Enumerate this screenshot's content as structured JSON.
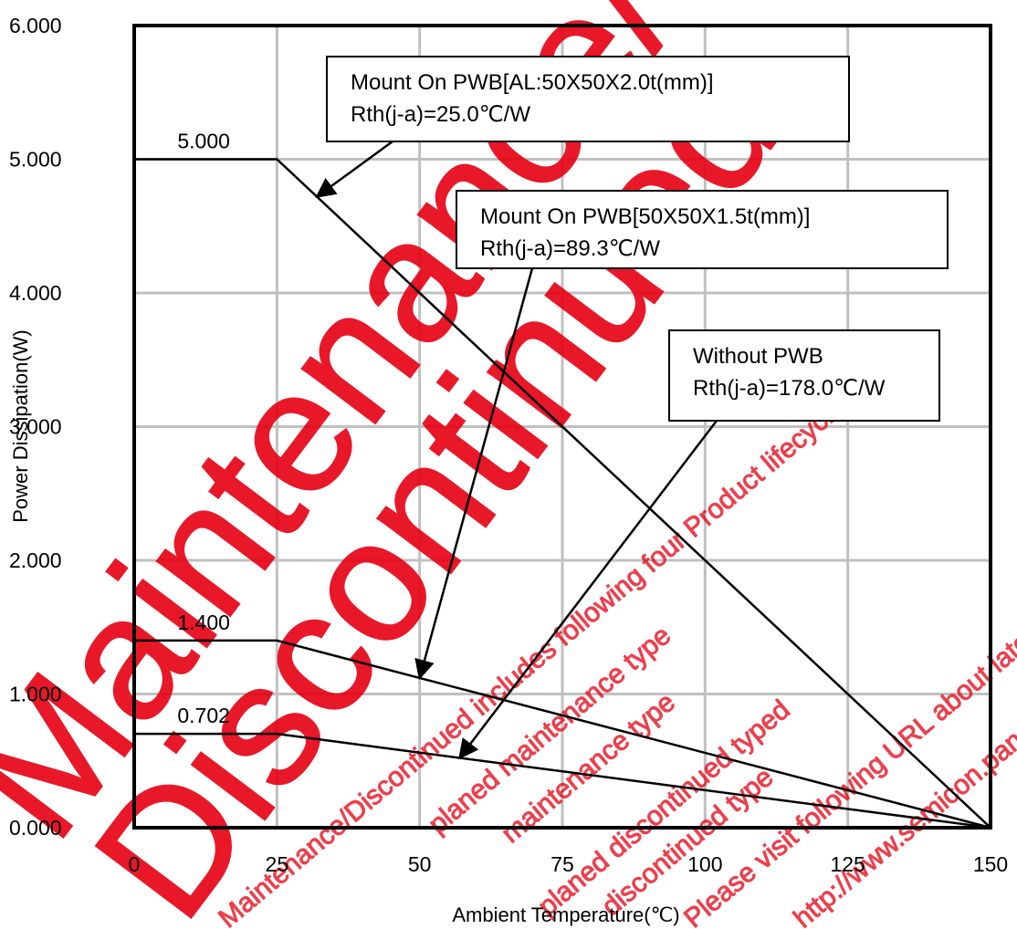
{
  "chart_data": {
    "type": "line",
    "xlabel": "Ambient Temperature(℃)",
    "ylabel": "Power Dissipation(W)",
    "xlim": [
      0,
      150
    ],
    "ylim": [
      0,
      6
    ],
    "xticks": [
      "0",
      "25",
      "50",
      "75",
      "100",
      "125",
      "150"
    ],
    "yticks": [
      "0.000",
      "1.000",
      "2.000",
      "3.000",
      "4.000",
      "5.000",
      "6.000"
    ],
    "grid": true,
    "series": [
      {
        "x": [
          0,
          25,
          150
        ],
        "y": [
          5.0,
          5.0,
          0.0
        ],
        "label": "5.000"
      },
      {
        "x": [
          0,
          25,
          150
        ],
        "y": [
          1.4,
          1.4,
          0.0
        ],
        "label": "1.400"
      },
      {
        "x": [
          0,
          25,
          150
        ],
        "y": [
          0.702,
          0.702,
          0.0
        ],
        "label": "0.702"
      }
    ],
    "annotations": [
      {
        "lines": [
          "Mount On PWB[AL:50X50X2.0t(mm)]",
          "Rth(j-a)=25.0℃/W"
        ]
      },
      {
        "lines": [
          "Mount On PWB[50X50X1.5t(mm)]",
          "Rth(j-a)=89.3℃/W"
        ]
      },
      {
        "lines": [
          "Without PWB",
          "Rth(j-a)=178.0℃/W"
        ]
      }
    ]
  },
  "watermark": {
    "big": [
      "Maintenance/",
      "Discontinued"
    ],
    "small": [
      "Maintenance/Discontinued includes following four Product lifecycle stage.",
      "planed maintenance type",
      "maintenance type",
      "planed discontinued typed",
      "discontinued type",
      "Please visit following URL about latest information.",
      "http://www.semicon.panasonic.co.jp/en/"
    ],
    "color": "#e60012"
  },
  "colors": {
    "line": "#000000",
    "grid": "#c0c0c0",
    "frame": "#000000"
  }
}
